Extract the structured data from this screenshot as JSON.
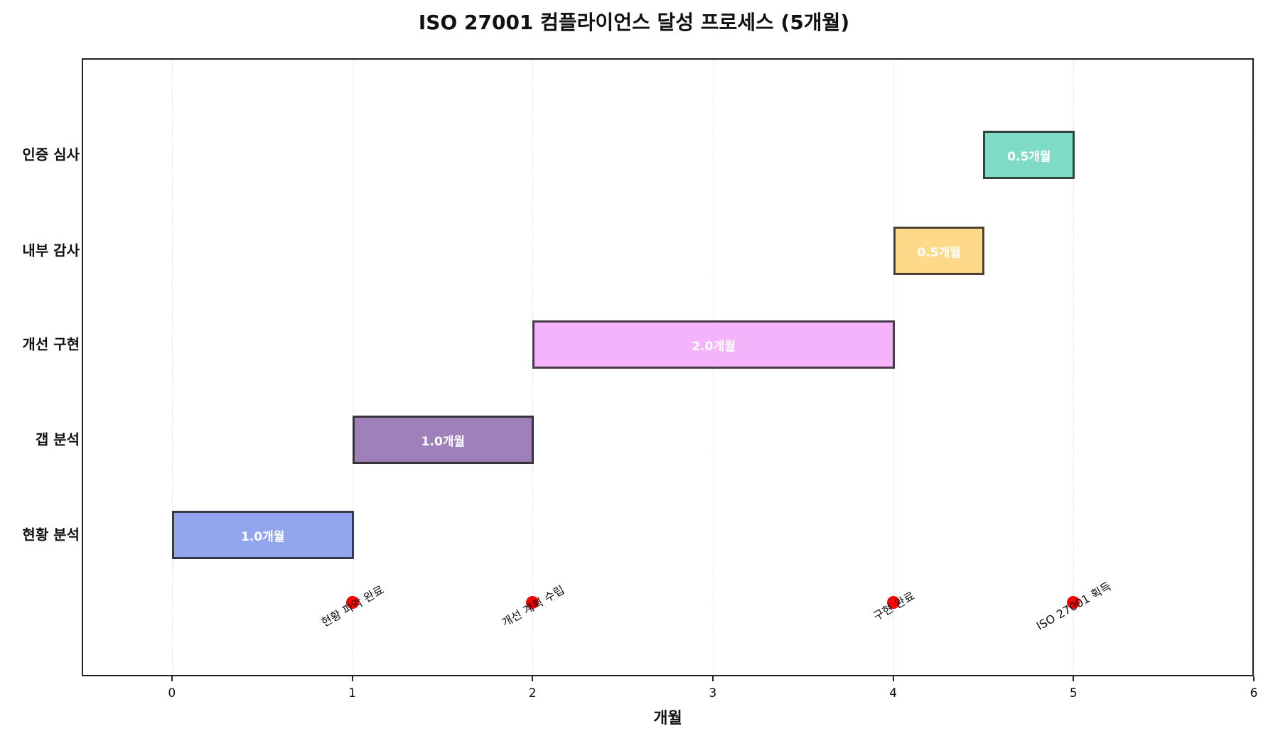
{
  "title": "ISO 27001 컴플라이언스 달성 프로세스 (5개월)",
  "chart_data": {
    "type": "gantt",
    "title": "ISO 27001 컴플라이언스 달성 프로세스 (5개월)",
    "xlabel": "개월",
    "ylabel": "",
    "xlim": [
      -0.5,
      6
    ],
    "xticks": [
      "0",
      "1",
      "2",
      "3",
      "4",
      "5",
      "6"
    ],
    "grid": "x-dashed",
    "tasks": [
      {
        "name": "현황 분석",
        "start": 0.0,
        "duration": 1.0,
        "label": "1.0개월",
        "color": "#93a5ef"
      },
      {
        "name": "갭 분석",
        "start": 1.0,
        "duration": 1.0,
        "label": "1.0개월",
        "color": "#9f80bb"
      },
      {
        "name": "개선 구현",
        "start": 2.0,
        "duration": 2.0,
        "label": "2.0개월",
        "color": "#f4b3fb"
      },
      {
        "name": "내부 감사",
        "start": 4.0,
        "duration": 0.5,
        "label": "0.5개월",
        "color": "#fed98a"
      },
      {
        "name": "인증 심사",
        "start": 4.5,
        "duration": 0.5,
        "label": "0.5개월",
        "color": "#7fdac6"
      }
    ],
    "milestones": [
      {
        "x": 1,
        "label": "현황 파악 완료"
      },
      {
        "x": 2,
        "label": "개선 계획 수립"
      },
      {
        "x": 4,
        "label": "구현 완료"
      },
      {
        "x": 5,
        "label": "ISO 27001 획득"
      }
    ],
    "milestone_color": "#ff0000"
  }
}
